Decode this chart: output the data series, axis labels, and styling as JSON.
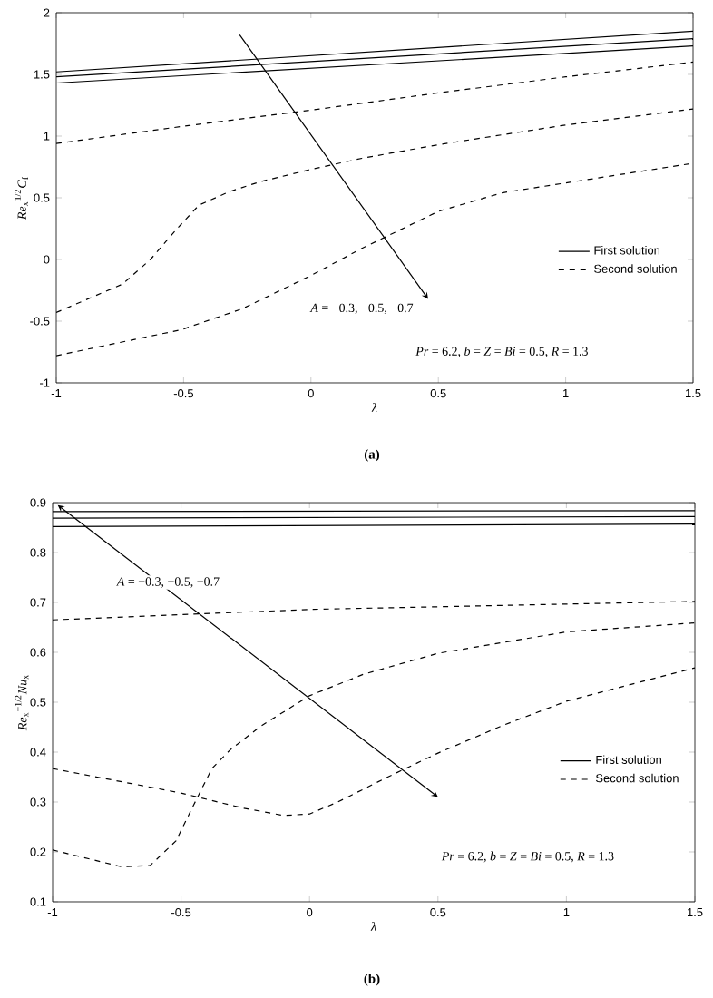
{
  "chart_data": [
    {
      "type": "line",
      "title": "(a)",
      "xlabel": "λ",
      "ylabel": "*Re*$_{x}$$^{1/2}$*C*$_{f}$",
      "xlim": [
        -1,
        1.5
      ],
      "ylim": [
        -1,
        2
      ],
      "xticks": [
        -1,
        -0.5,
        0,
        0.5,
        1,
        1.5
      ],
      "yticks": [
        -1,
        -0.5,
        0,
        0.5,
        1,
        1.5,
        2
      ],
      "legend": "right",
      "annotations": [
        "*A* = −0.3, −0.5, −0.7",
        "*Pr* = 6.2, *b* = *Z* = *Bi* = 0.5, *R* = 1.3"
      ],
      "series": [
        {
          "name": "First solution",
          "color": "#000000",
          "line_style": "solid",
          "x": [
            -1,
            1.5
          ],
          "values": [
            1.52,
            1.85
          ]
        },
        {
          "color": "#000000",
          "line_style": "solid",
          "x": [
            -1,
            1.5
          ],
          "values": [
            1.48,
            1.79
          ]
        },
        {
          "color": "#000000",
          "line_style": "solid",
          "x": [
            -1,
            1.5
          ],
          "values": [
            1.43,
            1.73
          ]
        },
        {
          "name": "Second solution",
          "color": "#000000",
          "line_style": "dashed",
          "x": [
            -1,
            -0.5,
            0,
            0.5,
            1,
            1.5
          ],
          "values": [
            0.94,
            1.08,
            1.21,
            1.35,
            1.48,
            1.6
          ]
        },
        {
          "color": "#000000",
          "line_style": "dashed",
          "x": [
            -1,
            -0.74,
            -0.63,
            -0.53,
            -0.44,
            -0.32,
            -0.2,
            0,
            0.2,
            0.5,
            1,
            1.5
          ],
          "values": [
            -0.43,
            -0.2,
            0.0,
            0.24,
            0.44,
            0.55,
            0.63,
            0.73,
            0.82,
            0.93,
            1.09,
            1.22
          ]
        },
        {
          "color": "#000000",
          "line_style": "dashed",
          "x": [
            -1,
            -0.51,
            -0.27,
            0,
            0.2,
            0.5,
            0.75,
            1,
            1.5
          ],
          "values": [
            -0.78,
            -0.57,
            -0.4,
            -0.13,
            0.09,
            0.39,
            0.54,
            0.62,
            0.78
          ]
        }
      ]
    },
    {
      "type": "line",
      "title": "(b)",
      "xlabel": "λ",
      "ylabel": "*Re*$_{x}$$^{−1/2}$*Nu*$_{x}$",
      "xlim": [
        -1,
        1.5
      ],
      "ylim": [
        0.1,
        0.9
      ],
      "xticks": [
        -1,
        -0.5,
        0,
        0.5,
        1,
        1.5
      ],
      "yticks": [
        0.1,
        0.2,
        0.3,
        0.4,
        0.5,
        0.6,
        0.7,
        0.8,
        0.9
      ],
      "legend": "right",
      "annotations": [
        "*A* = −0.3, −0.5, −0.7",
        "*Pr* = 6.2, *b* = *Z* = *Bi* = 0.5, *R* = 1.3"
      ],
      "series": [
        {
          "name": "First solution",
          "color": "#000000",
          "line_style": "solid",
          "x": [
            -1,
            1.5
          ],
          "values": [
            0.882,
            0.884
          ]
        },
        {
          "color": "#000000",
          "line_style": "solid",
          "x": [
            -1,
            1.5
          ],
          "values": [
            0.869,
            0.872
          ]
        },
        {
          "color": "#000000",
          "line_style": "solid",
          "x": [
            -1,
            1.5
          ],
          "values": [
            0.852,
            0.857
          ]
        },
        {
          "name": "Second solution",
          "color": "#000000",
          "line_style": "dashed",
          "x": [
            -1,
            0,
            1.5
          ],
          "values": [
            0.665,
            0.686,
            0.702
          ]
        },
        {
          "color": "#000000",
          "line_style": "dashed",
          "x": [
            -1,
            -0.73,
            -0.62,
            -0.52,
            -0.45,
            -0.38,
            -0.31,
            -0.19,
            0,
            0.21,
            0.5,
            1,
            1.5
          ],
          "values": [
            0.204,
            0.17,
            0.173,
            0.222,
            0.295,
            0.367,
            0.404,
            0.452,
            0.513,
            0.556,
            0.598,
            0.641,
            0.659
          ]
        },
        {
          "color": "#000000",
          "line_style": "dashed",
          "x": [
            -1,
            -0.5,
            -0.26,
            -0.1,
            0,
            0.11,
            0.3,
            0.5,
            0.75,
            1,
            1.5
          ],
          "values": [
            0.367,
            0.318,
            0.288,
            0.273,
            0.276,
            0.3,
            0.349,
            0.398,
            0.453,
            0.502,
            0.569
          ]
        }
      ]
    }
  ]
}
